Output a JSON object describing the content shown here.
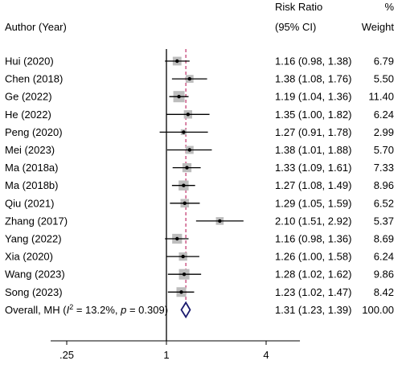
{
  "header": {
    "author": "Author (Year)",
    "rr_line1": "Risk Ratio",
    "rr_line2": "(95% CI)",
    "w_line1": "%",
    "w_line2": "Weight"
  },
  "chart_data": {
    "type": "forest",
    "scale": "log",
    "xlim": [
      0.2,
      6.4
    ],
    "null_value": 1,
    "pooled_reference_line": 1.31,
    "x_ticks": [
      {
        "value": 0.25,
        "label": ".25"
      },
      {
        "value": 1,
        "label": "1"
      },
      {
        "value": 4,
        "label": "4"
      }
    ],
    "studies": [
      {
        "author": "Hui (2020)",
        "rr": 1.16,
        "lo": 0.98,
        "hi": 1.38,
        "ci_text": "1.16 (0.98, 1.38)",
        "weight": 6.79,
        "weight_text": "6.79"
      },
      {
        "author": "Chen (2018)",
        "rr": 1.38,
        "lo": 1.08,
        "hi": 1.76,
        "ci_text": "1.38 (1.08, 1.76)",
        "weight": 5.5,
        "weight_text": "5.50"
      },
      {
        "author": "Ge (2022)",
        "rr": 1.19,
        "lo": 1.04,
        "hi": 1.36,
        "ci_text": "1.19 (1.04, 1.36)",
        "weight": 11.4,
        "weight_text": "11.40"
      },
      {
        "author": "He (2022)",
        "rr": 1.35,
        "lo": 1.0,
        "hi": 1.82,
        "ci_text": "1.35 (1.00, 1.82)",
        "weight": 6.24,
        "weight_text": "6.24"
      },
      {
        "author": "Peng (2020)",
        "rr": 1.27,
        "lo": 0.91,
        "hi": 1.78,
        "ci_text": "1.27 (0.91, 1.78)",
        "weight": 2.99,
        "weight_text": "2.99"
      },
      {
        "author": "Mei (2023)",
        "rr": 1.38,
        "lo": 1.01,
        "hi": 1.88,
        "ci_text": "1.38 (1.01, 1.88)",
        "weight": 5.7,
        "weight_text": "5.70"
      },
      {
        "author": "Ma (2018a)",
        "rr": 1.33,
        "lo": 1.09,
        "hi": 1.61,
        "ci_text": "1.33 (1.09, 1.61)",
        "weight": 7.33,
        "weight_text": "7.33"
      },
      {
        "author": "Ma (2018b)",
        "rr": 1.27,
        "lo": 1.08,
        "hi": 1.49,
        "ci_text": "1.27 (1.08, 1.49)",
        "weight": 8.96,
        "weight_text": "8.96"
      },
      {
        "author": "Qiu (2021)",
        "rr": 1.29,
        "lo": 1.05,
        "hi": 1.59,
        "ci_text": "1.29 (1.05, 1.59)",
        "weight": 6.52,
        "weight_text": "6.52"
      },
      {
        "author": "Zhang (2017)",
        "rr": 2.1,
        "lo": 1.51,
        "hi": 2.92,
        "ci_text": "2.10 (1.51, 2.92)",
        "weight": 5.37,
        "weight_text": "5.37"
      },
      {
        "author": "Yang (2022)",
        "rr": 1.16,
        "lo": 0.98,
        "hi": 1.36,
        "ci_text": "1.16 (0.98, 1.36)",
        "weight": 8.69,
        "weight_text": "8.69"
      },
      {
        "author": "Xia (2020)",
        "rr": 1.26,
        "lo": 1.0,
        "hi": 1.58,
        "ci_text": "1.26 (1.00, 1.58)",
        "weight": 6.24,
        "weight_text": "6.24"
      },
      {
        "author": "Wang (2023)",
        "rr": 1.28,
        "lo": 1.02,
        "hi": 1.62,
        "ci_text": "1.28 (1.02, 1.62)",
        "weight": 9.86,
        "weight_text": "9.86"
      },
      {
        "author": "Song (2023)",
        "rr": 1.23,
        "lo": 1.02,
        "hi": 1.47,
        "ci_text": "1.23 (1.02, 1.47)",
        "weight": 8.42,
        "weight_text": "8.42"
      }
    ],
    "overall": {
      "label_prefix": "Overall, MH (",
      "i2_symbol": "I",
      "i2_sup": "2",
      "label_middle": " = 13.2%, ",
      "p_symbol": "p",
      "label_suffix": " = 0.309)",
      "rr": 1.31,
      "lo": 1.23,
      "hi": 1.39,
      "ci_text": "1.31 (1.23, 1.39)",
      "weight_text": "100.00"
    },
    "colors": {
      "box": "#bdbdbd",
      "line": "#000000",
      "reference_line": "#c0306a",
      "diamond": "#1a1a6e"
    }
  }
}
